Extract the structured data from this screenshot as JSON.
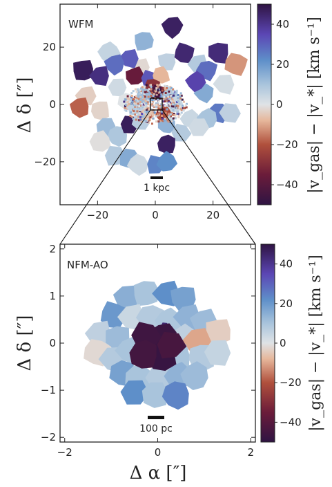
{
  "chart_data": [
    {
      "type": "heatmap",
      "panel_label": "WFM",
      "xlim": [
        -33,
        33
      ],
      "ylim": [
        -35,
        35
      ],
      "xticks": [
        -20,
        0,
        20
      ],
      "xtick_labels": [
        "−20",
        "0",
        "20"
      ],
      "yticks": [
        -20,
        0,
        20
      ],
      "ytick_labels": [
        "−20",
        "0",
        "20"
      ],
      "ylabel": "Δ δ [″]",
      "scale_bar": "1 kpc",
      "colorbar": {
        "label": "|v_gas| − |v_*| [km s⁻¹]",
        "range": [
          -50,
          50
        ],
        "ticks": [
          40,
          20,
          0,
          -20,
          -40
        ],
        "tick_labels": [
          "40",
          "20",
          "0",
          "−20",
          "−40"
        ]
      },
      "bins": [
        {
          "x": 6,
          "y": 27,
          "v": 46
        },
        {
          "x": -4,
          "y": 22,
          "v": 14
        },
        {
          "x": -5,
          "y": 13,
          "v": -2
        },
        {
          "x": 4,
          "y": 15,
          "v": 6
        },
        {
          "x": 10,
          "y": 18,
          "v": 44
        },
        {
          "x": 15,
          "y": 14,
          "v": 8
        },
        {
          "x": 18,
          "y": 12,
          "v": 28
        },
        {
          "x": -16,
          "y": 18,
          "v": 5
        },
        {
          "x": -9,
          "y": 16,
          "v": 31
        },
        {
          "x": -14,
          "y": 14,
          "v": 28
        },
        {
          "x": -25,
          "y": 12,
          "v": 47
        },
        {
          "x": -19,
          "y": 10,
          "v": 42
        },
        {
          "x": 22,
          "y": 18,
          "v": 43
        },
        {
          "x": 28,
          "y": 14,
          "v": -12
        },
        {
          "x": 24,
          "y": 7,
          "v": 2
        },
        {
          "x": 17,
          "y": 4,
          "v": 16
        },
        {
          "x": 14,
          "y": 8,
          "v": 36
        },
        {
          "x": -24,
          "y": 3,
          "v": -4
        },
        {
          "x": -26,
          "y": -1,
          "v": -18
        },
        {
          "x": -19,
          "y": -2,
          "v": -3
        },
        {
          "x": -13,
          "y": 6,
          "v": 3
        },
        {
          "x": -10,
          "y": 1,
          "v": 0
        },
        {
          "x": 22,
          "y": -3,
          "v": 26
        },
        {
          "x": 26,
          "y": -3,
          "v": 6
        },
        {
          "x": 12,
          "y": -5,
          "v": 4
        },
        {
          "x": 18,
          "y": -5,
          "v": 10
        },
        {
          "x": 15,
          "y": -8,
          "v": 3
        },
        {
          "x": -17,
          "y": -8,
          "v": 12
        },
        {
          "x": -13,
          "y": -11,
          "v": 9
        },
        {
          "x": -9,
          "y": -7,
          "v": 47
        },
        {
          "x": -5,
          "y": -6,
          "v": 7
        },
        {
          "x": 4,
          "y": -7,
          "v": 14
        },
        {
          "x": 9,
          "y": -10,
          "v": 8
        },
        {
          "x": -19,
          "y": -13,
          "v": -1
        },
        {
          "x": 4,
          "y": -14,
          "v": 46
        },
        {
          "x": -14,
          "y": -18,
          "v": 8
        },
        {
          "x": -9,
          "y": -19,
          "v": 16
        },
        {
          "x": -6,
          "y": -21,
          "v": 3
        },
        {
          "x": 0,
          "y": -21,
          "v": 24
        },
        {
          "x": 4,
          "y": -20,
          "v": 22
        },
        {
          "x": -7,
          "y": 10,
          "v": -36
        },
        {
          "x": -2,
          "y": 9,
          "v": 32
        },
        {
          "x": 2,
          "y": 10,
          "v": -8
        },
        {
          "x": -1,
          "y": 6,
          "v": -28
        },
        {
          "x": 1,
          "y": 4,
          "v": -44
        },
        {
          "x": -4,
          "y": 3,
          "v": 12
        },
        {
          "x": 5,
          "y": 3,
          "v": 9
        },
        {
          "x": -3,
          "y": -3,
          "v": -6
        },
        {
          "x": 3,
          "y": -3,
          "v": -20
        },
        {
          "x": 7,
          "y": 0,
          "v": 4
        },
        {
          "x": -7,
          "y": -1,
          "v": 6
        }
      ]
    },
    {
      "type": "heatmap",
      "panel_label": "NFM-AO",
      "xlim": [
        -2.1,
        2.1
      ],
      "ylim": [
        -2.1,
        2.1
      ],
      "xticks": [
        -2,
        0,
        2
      ],
      "xtick_labels": [
        "−2",
        "0",
        "2"
      ],
      "yticks": [
        2,
        1,
        0,
        -1,
        -2
      ],
      "ytick_labels": [
        "2",
        "1",
        "0",
        "−1",
        "−2"
      ],
      "xlabel": "Δ α [″]",
      "ylabel": "Δ δ [″]",
      "scale_bar": "100 pc",
      "colorbar": {
        "label": "|v_gas| − |v_*| [km s⁻¹]",
        "range": [
          -50,
          50
        ],
        "ticks": [
          40,
          20,
          0,
          -20,
          -40
        ],
        "tick_labels": [
          "40",
          "20",
          "0",
          "−20",
          "−40"
        ]
      },
      "bins": [
        {
          "x": -0.65,
          "y": 0.95,
          "v": 15
        },
        {
          "x": -0.25,
          "y": 1.05,
          "v": 10
        },
        {
          "x": 0.2,
          "y": 1.05,
          "v": 22
        },
        {
          "x": 0.55,
          "y": 0.95,
          "v": 18
        },
        {
          "x": -0.95,
          "y": 0.6,
          "v": 20
        },
        {
          "x": -0.55,
          "y": 0.55,
          "v": 4
        },
        {
          "x": -0.15,
          "y": 0.55,
          "v": 8
        },
        {
          "x": 0.25,
          "y": 0.45,
          "v": 9
        },
        {
          "x": 0.65,
          "y": 0.55,
          "v": 14
        },
        {
          "x": 1.0,
          "y": 0.45,
          "v": 12
        },
        {
          "x": 1.3,
          "y": 0.25,
          "v": -4
        },
        {
          "x": -1.25,
          "y": 0.2,
          "v": 6
        },
        {
          "x": -0.85,
          "y": 0.1,
          "v": 12
        },
        {
          "x": -1.3,
          "y": -0.2,
          "v": -2
        },
        {
          "x": -0.95,
          "y": -0.35,
          "v": 8
        },
        {
          "x": -0.6,
          "y": -0.15,
          "v": 10
        },
        {
          "x": 0.55,
          "y": 0.1,
          "v": 6
        },
        {
          "x": 0.85,
          "y": 0.05,
          "v": -10
        },
        {
          "x": 0.45,
          "y": -0.3,
          "v": 10
        },
        {
          "x": 0.95,
          "y": -0.3,
          "v": 8
        },
        {
          "x": 1.3,
          "y": -0.2,
          "v": 5
        },
        {
          "x": -0.75,
          "y": -0.65,
          "v": 18
        },
        {
          "x": -0.4,
          "y": -0.75,
          "v": 10
        },
        {
          "x": 0.05,
          "y": -0.75,
          "v": 8
        },
        {
          "x": 0.45,
          "y": -0.7,
          "v": 14
        },
        {
          "x": 0.8,
          "y": -0.7,
          "v": 12
        },
        {
          "x": -0.5,
          "y": -1.05,
          "v": 22
        },
        {
          "x": -0.05,
          "y": -1.1,
          "v": 10
        },
        {
          "x": 0.4,
          "y": -1.1,
          "v": 24
        },
        {
          "x": 0.15,
          "y": 0.35,
          "v": 44
        },
        {
          "x": -0.08,
          "y": -0.05,
          "v": -48
        },
        {
          "x": 0.12,
          "y": 0.12,
          "v": -47
        },
        {
          "x": -0.25,
          "y": 0.15,
          "v": -46
        },
        {
          "x": 0.1,
          "y": -0.3,
          "v": -48
        },
        {
          "x": -0.3,
          "y": -0.25,
          "v": -45
        },
        {
          "x": 0.28,
          "y": -0.05,
          "v": -44
        }
      ]
    }
  ]
}
